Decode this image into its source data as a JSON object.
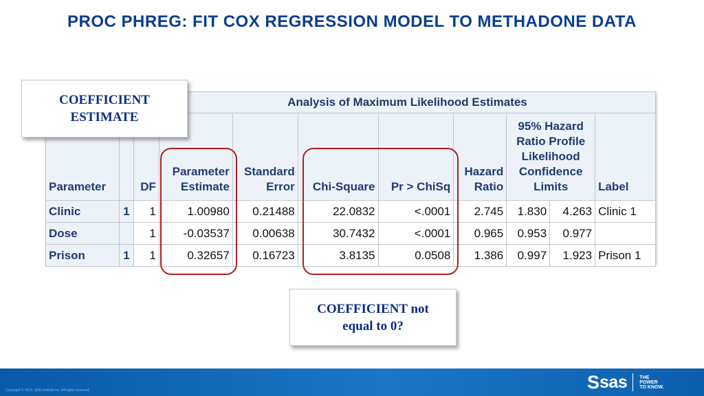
{
  "slide": {
    "title": "PROC PHREG: FIT COX REGRESSION MODEL TO METHADONE DATA"
  },
  "callouts": {
    "coefficient_estimate": [
      "COEFFICIENT",
      "ESTIMATE"
    ],
    "not_equal_zero": [
      "COEFFICIENT not",
      "equal to 0?"
    ]
  },
  "table": {
    "caption": "Analysis of Maximum Likelihood Estimates",
    "headers": {
      "parameter": "Parameter",
      "df": "DF",
      "estimate": [
        "Parameter",
        "Estimate"
      ],
      "stderr": [
        "Standard",
        "Error"
      ],
      "chisq": "Chi-Square",
      "pvalue": "Pr > ChiSq",
      "hazard": [
        "Hazard",
        "Ratio"
      ],
      "ci": [
        "95% Hazard",
        "Ratio Profile",
        "Likelihood",
        "Confidence",
        "Limits"
      ],
      "label": "Label"
    },
    "rows": [
      {
        "parameter": "Clinic",
        "class": "1",
        "df": "1",
        "estimate": "1.00980",
        "stderr": "0.21488",
        "chisq": "22.0832",
        "pvalue": "<.0001",
        "hazard": "2.745",
        "ci_low": "1.830",
        "ci_high": "4.263",
        "label": "Clinic 1"
      },
      {
        "parameter": "Dose",
        "class": "",
        "df": "1",
        "estimate": "-0.03537",
        "stderr": "0.00638",
        "chisq": "30.7432",
        "pvalue": "<.0001",
        "hazard": "0.965",
        "ci_low": "0.953",
        "ci_high": "0.977",
        "label": ""
      },
      {
        "parameter": "Prison",
        "class": "1",
        "df": "1",
        "estimate": "0.32657",
        "stderr": "0.16723",
        "chisq": "3.8135",
        "pvalue": "0.0508",
        "hazard": "1.386",
        "ci_low": "0.997",
        "ci_high": "1.923",
        "label": "Prison 1"
      }
    ]
  },
  "footer": {
    "copyright": "Copyright © 2013, SAS Institute Inc. All rights reserved.",
    "logo_s": "S",
    "logo_word": "sas",
    "tagline": [
      "THE",
      "POWER",
      "TO KNOW."
    ],
    "bar_color": "#0a5aa8"
  },
  "colors": {
    "title": "#0b3d91",
    "highlight_oval": "#b0201f",
    "header_bg": "#edf2f9"
  }
}
